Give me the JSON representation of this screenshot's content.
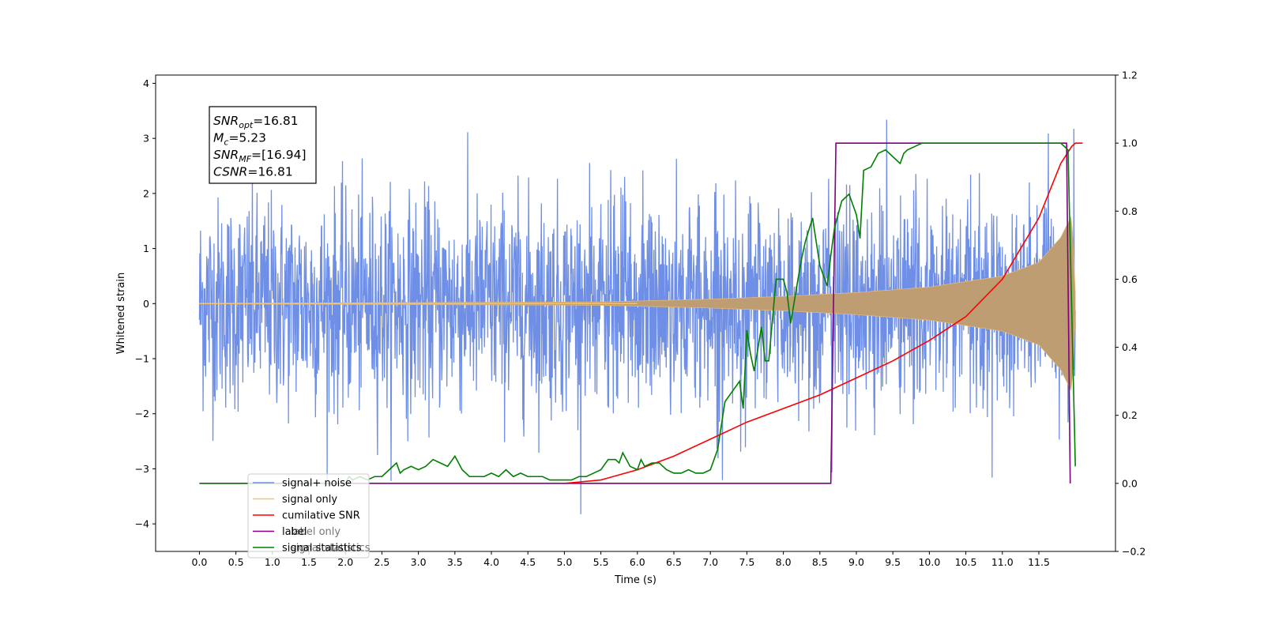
{
  "chart_data": {
    "type": "line",
    "title": "",
    "xlabel": "Time (s)",
    "ylabel": "Whitened strain",
    "xlim": [
      -0.6,
      12.55
    ],
    "ylim": [
      -4.5,
      4.15
    ],
    "y2lim": [
      -0.2,
      1.2
    ],
    "xticks": [
      "0.0",
      "0.5",
      "1.0",
      "1.5",
      "2.0",
      "2.5",
      "3.0",
      "3.5",
      "4.0",
      "4.5",
      "5.0",
      "5.5",
      "6.0",
      "6.5",
      "7.0",
      "7.5",
      "8.0",
      "8.5",
      "9.0",
      "9.5",
      "10.0",
      "10.5",
      "11.0",
      "11.5"
    ],
    "yticks": [
      "4",
      "3",
      "2",
      "1",
      "0",
      "−1",
      "−2",
      "−3",
      "−4"
    ],
    "y2ticks": [
      "1.2",
      "1.0",
      "0.8",
      "0.6",
      "0.4",
      "0.2",
      "0.0",
      "−0.2"
    ],
    "grid": false,
    "legend_position": "lower-left",
    "annotation": {
      "lines": [
        {
          "sym": "SNR",
          "sub": "opt",
          "value": "=16.81"
        },
        {
          "sym": "M",
          "sub": "c",
          "value": "=5.23"
        },
        {
          "sym": "SNR",
          "sub": "MF",
          "value": "=[16.94]"
        },
        {
          "sym": "CSNR",
          "sub": "",
          "value": "=16.81"
        }
      ]
    },
    "series": [
      {
        "name": "signal+ noise",
        "color": "#6f8fe6",
        "axis": "left",
        "style": "noise",
        "x_range": [
          0.0,
          12.0
        ],
        "amplitude": 1.0
      },
      {
        "name": "signal only",
        "color": "#f5c470",
        "axis": "left",
        "style": "chirp",
        "x_range": [
          0.0,
          12.0
        ],
        "envelope": [
          [
            0.0,
            0.005
          ],
          [
            5.5,
            0.03
          ],
          [
            7.0,
            0.08
          ],
          [
            8.0,
            0.13
          ],
          [
            9.0,
            0.2
          ],
          [
            10.0,
            0.3
          ],
          [
            11.0,
            0.5
          ],
          [
            11.5,
            0.75
          ],
          [
            11.8,
            1.2
          ],
          [
            11.95,
            1.6
          ],
          [
            12.0,
            0.2
          ]
        ]
      },
      {
        "name": "cumilative SNR",
        "color": "#ff0000",
        "axis": "right",
        "x": [
          5.0,
          5.5,
          6.0,
          6.5,
          7.0,
          7.5,
          8.0,
          8.5,
          9.0,
          9.5,
          10.0,
          10.5,
          11.0,
          11.5,
          11.8,
          11.95,
          12.0,
          12.1
        ],
        "values": [
          0.0,
          0.01,
          0.04,
          0.08,
          0.13,
          0.18,
          0.22,
          0.26,
          0.31,
          0.36,
          0.42,
          0.49,
          0.6,
          0.78,
          0.94,
          0.99,
          1.0,
          1.0
        ]
      },
      {
        "name": "label",
        "color": "#800080",
        "axis": "right",
        "x": [
          0.0,
          8.65,
          8.72,
          11.88,
          11.93
        ],
        "values": [
          0.0,
          0.0,
          1.0,
          1.0,
          0.0
        ]
      },
      {
        "name": "signal statistics",
        "color": "#008000",
        "axis": "right",
        "x": [
          0.0,
          2.0,
          2.05,
          2.1,
          2.2,
          2.3,
          2.4,
          2.5,
          2.6,
          2.7,
          2.75,
          2.8,
          2.9,
          3.0,
          3.1,
          3.2,
          3.3,
          3.4,
          3.5,
          3.55,
          3.6,
          3.7,
          3.8,
          3.9,
          4.0,
          4.1,
          4.2,
          4.3,
          4.4,
          4.5,
          4.6,
          4.7,
          4.8,
          4.9,
          5.0,
          5.1,
          5.2,
          5.3,
          5.4,
          5.5,
          5.6,
          5.7,
          5.75,
          5.8,
          5.9,
          6.0,
          6.05,
          6.1,
          6.2,
          6.3,
          6.4,
          6.5,
          6.6,
          6.7,
          6.8,
          6.9,
          7.0,
          7.1,
          7.2,
          7.3,
          7.4,
          7.45,
          7.5,
          7.55,
          7.6,
          7.7,
          7.75,
          7.8,
          7.9,
          8.0,
          8.05,
          8.1,
          8.2,
          8.25,
          8.3,
          8.4,
          8.5,
          8.6,
          8.65,
          8.7,
          8.8,
          8.9,
          9.0,
          9.05,
          9.1,
          9.2,
          9.3,
          9.4,
          9.5,
          9.6,
          9.65,
          9.7,
          9.8,
          9.9,
          10.0,
          10.5,
          11.0,
          11.5,
          11.8,
          11.9,
          12.0
        ],
        "values": [
          0.0,
          0.0,
          0.02,
          0.01,
          0.02,
          0.01,
          0.02,
          0.02,
          0.04,
          0.06,
          0.03,
          0.04,
          0.05,
          0.04,
          0.05,
          0.07,
          0.06,
          0.05,
          0.08,
          0.06,
          0.04,
          0.02,
          0.02,
          0.02,
          0.03,
          0.02,
          0.04,
          0.02,
          0.03,
          0.02,
          0.02,
          0.02,
          0.01,
          0.01,
          0.01,
          0.01,
          0.02,
          0.02,
          0.03,
          0.04,
          0.07,
          0.07,
          0.06,
          0.09,
          0.05,
          0.04,
          0.07,
          0.05,
          0.06,
          0.06,
          0.04,
          0.03,
          0.03,
          0.04,
          0.03,
          0.03,
          0.04,
          0.1,
          0.24,
          0.27,
          0.3,
          0.22,
          0.45,
          0.38,
          0.33,
          0.46,
          0.36,
          0.36,
          0.6,
          0.6,
          0.56,
          0.47,
          0.6,
          0.66,
          0.71,
          0.78,
          0.64,
          0.58,
          0.67,
          0.75,
          0.83,
          0.85,
          0.79,
          0.72,
          0.92,
          0.93,
          0.97,
          0.98,
          0.96,
          0.94,
          0.97,
          0.98,
          0.99,
          1.0,
          1.0,
          1.0,
          1.0,
          1.0,
          1.0,
          0.98,
          0.05
        ]
      }
    ],
    "legend": [
      "signal+ noise",
      "signal only",
      "cumilative SNR",
      "label",
      "signal statistics"
    ],
    "legend_overlap_text": [
      "label only",
      "signal statistics"
    ]
  }
}
